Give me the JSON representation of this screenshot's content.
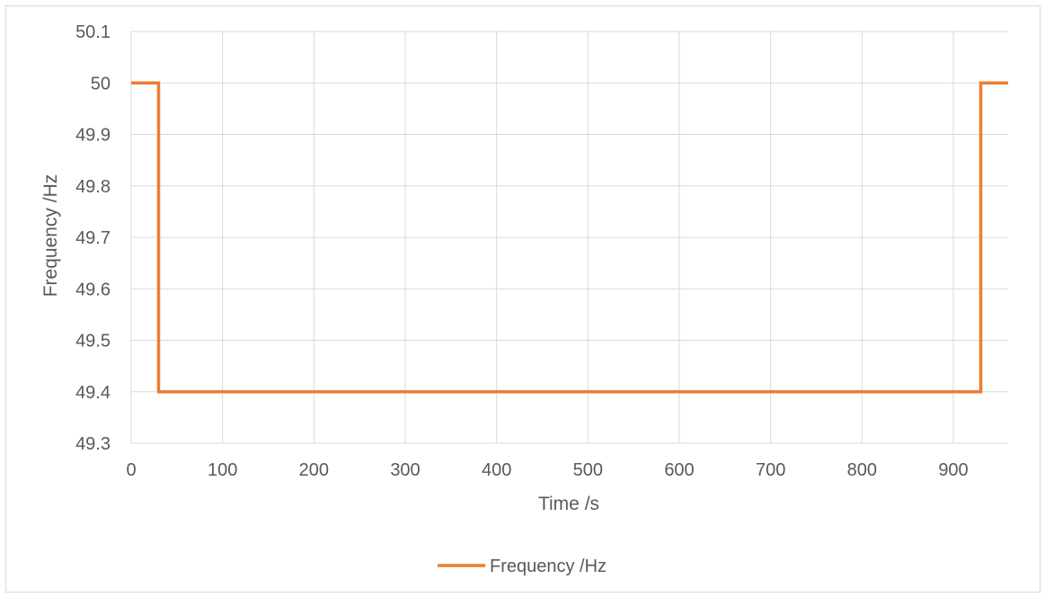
{
  "chart_data": {
    "type": "line",
    "title": "",
    "xlabel": "Time /s",
    "ylabel": "Frequency /Hz",
    "xlim": [
      0,
      960
    ],
    "ylim": [
      49.3,
      50.1
    ],
    "x_ticks": [
      0,
      100,
      200,
      300,
      400,
      500,
      600,
      700,
      800,
      900
    ],
    "y_ticks": [
      49.3,
      49.4,
      49.5,
      49.6,
      49.7,
      49.8,
      49.9,
      50,
      50.1
    ],
    "grid": true,
    "legend_position": "bottom",
    "series": [
      {
        "name": "Frequency /Hz",
        "color": "#ED7D31",
        "x": [
          0,
          30,
          30,
          930,
          930,
          960
        ],
        "y": [
          50,
          50,
          49.4,
          49.4,
          50,
          50
        ]
      }
    ]
  }
}
